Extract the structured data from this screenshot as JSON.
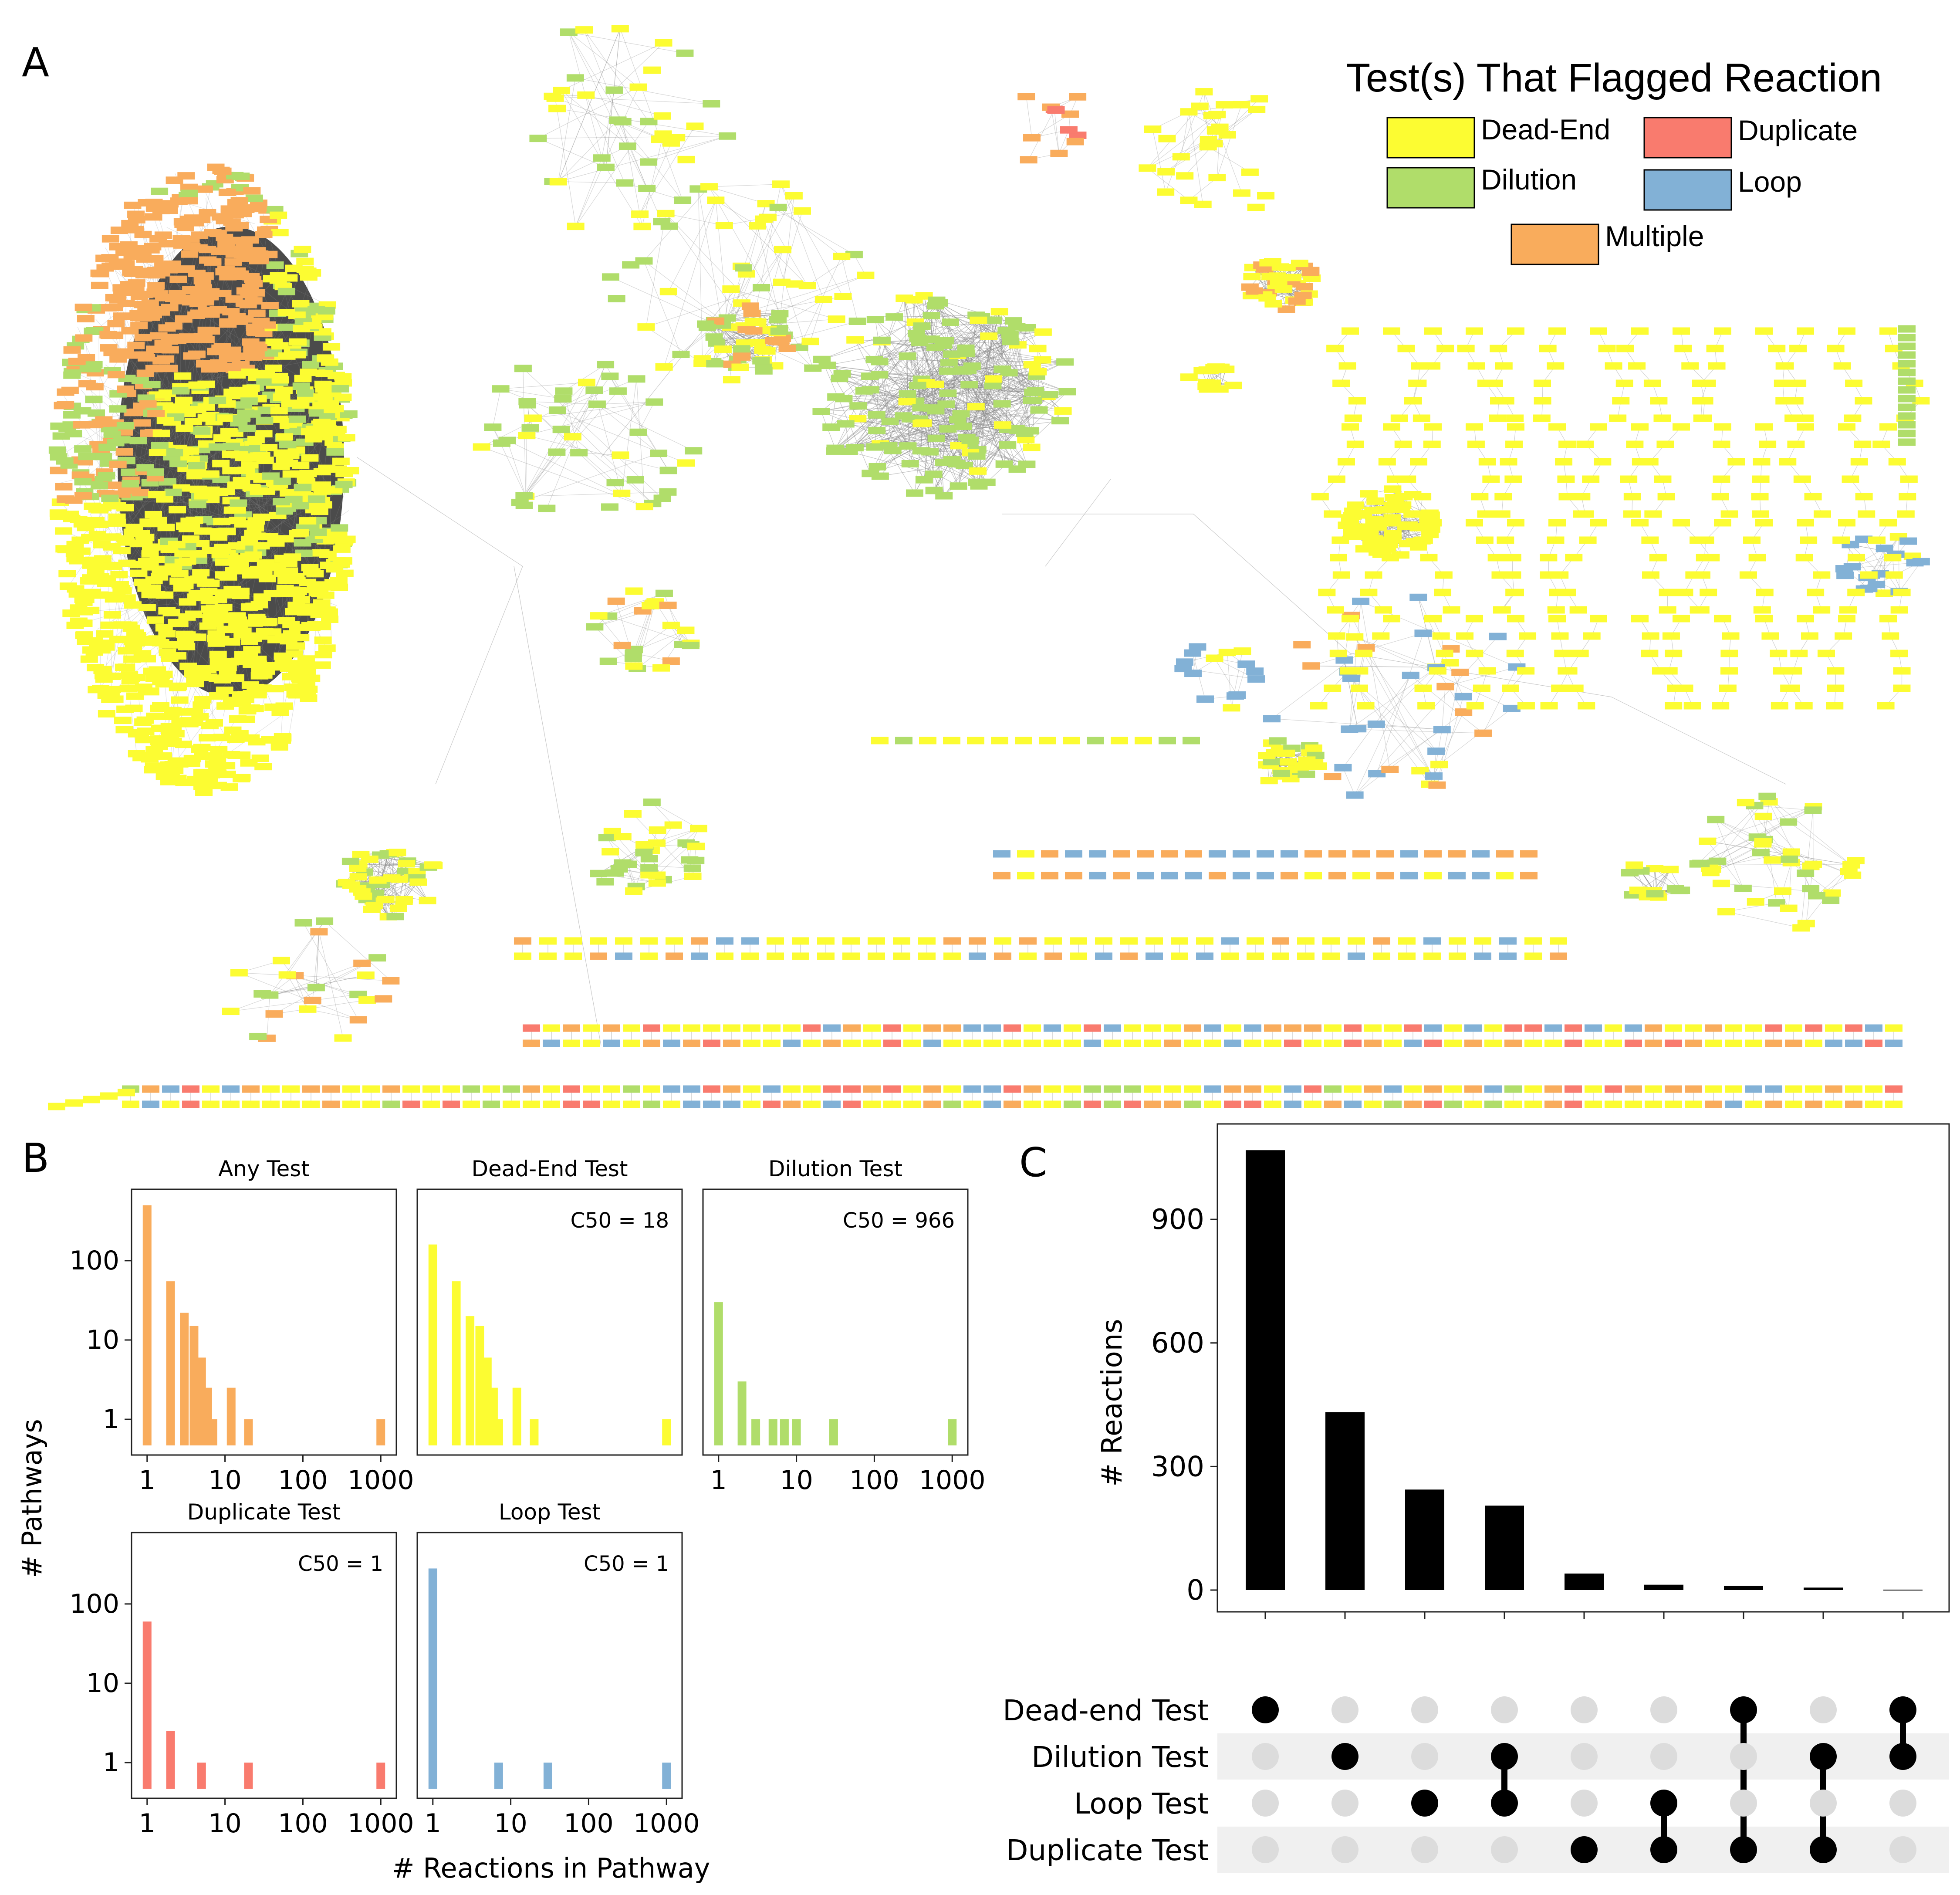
{
  "panel_labels": {
    "a": "A",
    "b": "B",
    "c": "C"
  },
  "colors": {
    "dead_end": "#fcfc32",
    "dilution": "#b0dd6a",
    "duplicate": "#f97b6e",
    "loop": "#82b1d6",
    "multiple": "#f9ac5c",
    "edge": "#8a8a8a",
    "bar": "#000000",
    "dot_inactive": "#dcdcdc",
    "stripe": "#f0f0f0"
  },
  "panel_a": {
    "legend": {
      "title": "Test(s) That Flagged Reaction",
      "items": [
        {
          "label": "Dead-End",
          "color": "#fcfc32"
        },
        {
          "label": "Duplicate",
          "color": "#f97b6e"
        },
        {
          "label": "Dilution",
          "color": "#b0dd6a"
        },
        {
          "label": "Loop",
          "color": "#82b1d6"
        },
        {
          "label": "Multiple",
          "color": "#f9ac5c"
        }
      ]
    }
  },
  "chart_data": [
    {
      "type": "bar",
      "panel": "B",
      "title": "Any Test",
      "xscale": "log",
      "yscale": "log",
      "xlabel": "# Reactions in Pathway",
      "ylabel": "# Pathways",
      "annotation": "",
      "xticks": [
        "1",
        "10",
        "100",
        "1000"
      ],
      "yticks": [
        "1",
        "10",
        "100"
      ],
      "color": "#f9ac5c",
      "x": [
        1,
        2,
        3,
        4,
        5,
        6,
        7,
        12,
        20,
        1000
      ],
      "values": [
        500,
        55,
        22,
        15,
        6,
        2.5,
        1,
        2.5,
        1,
        1
      ]
    },
    {
      "type": "bar",
      "panel": "B",
      "title": "Dead-End Test",
      "xscale": "log",
      "yscale": "log",
      "annotation": "C50 = 18",
      "xticks": [],
      "yticks": [],
      "color": "#fcfc32",
      "x": [
        1,
        2,
        3,
        4,
        5,
        6,
        7,
        12,
        20,
        1000
      ],
      "values": [
        160,
        55,
        20,
        15,
        6,
        2.5,
        1,
        2.5,
        1,
        1
      ]
    },
    {
      "type": "bar",
      "panel": "B",
      "title": "Dilution Test",
      "xscale": "log",
      "yscale": "log",
      "annotation": "C50 = 966",
      "xticks": [
        "1",
        "10",
        "100",
        "1000"
      ],
      "yticks": [],
      "color": "#b0dd6a",
      "x": [
        1,
        2,
        3,
        5,
        7,
        10,
        30,
        1000
      ],
      "values": [
        30,
        3,
        1,
        1,
        1,
        1,
        1,
        1
      ]
    },
    {
      "type": "bar",
      "panel": "B",
      "title": "Duplicate Test",
      "xscale": "log",
      "yscale": "log",
      "annotation": "C50 = 1",
      "xticks": [
        "1",
        "10",
        "100",
        "1000"
      ],
      "yticks": [
        "1",
        "10",
        "100"
      ],
      "color": "#f97b6e",
      "x": [
        1,
        2,
        5,
        20,
        1000
      ],
      "values": [
        60,
        2.5,
        1,
        1,
        1
      ]
    },
    {
      "type": "bar",
      "panel": "B",
      "title": "Loop Test",
      "xscale": "log",
      "yscale": "log",
      "annotation": "C50 = 1",
      "xticks": [
        "1",
        "10",
        "100",
        "1000"
      ],
      "yticks": [],
      "color": "#82b1d6",
      "x": [
        1,
        7,
        30,
        1000
      ],
      "values": [
        280,
        1,
        1,
        1
      ]
    },
    {
      "type": "bar",
      "panel": "C",
      "title": "",
      "ylabel": "# Reactions",
      "ylim": [
        0,
        1100
      ],
      "yticks": [
        "0",
        "300",
        "600",
        "900"
      ],
      "sets": [
        "Dead-end Test",
        "Dilution Test",
        "Loop Test",
        "Duplicate Test"
      ],
      "values": [
        1068,
        432,
        244,
        205,
        40,
        13,
        10,
        6,
        1
      ],
      "membership": [
        [
          "Dead-end Test"
        ],
        [
          "Dilution Test"
        ],
        [
          "Loop Test"
        ],
        [
          "Dilution Test",
          "Loop Test"
        ],
        [
          "Duplicate Test"
        ],
        [
          "Loop Test",
          "Duplicate Test"
        ],
        [
          "Dead-end Test",
          "Duplicate Test"
        ],
        [
          "Dilution Test",
          "Duplicate Test"
        ],
        [
          "Dead-end Test",
          "Dilution Test"
        ]
      ]
    }
  ]
}
